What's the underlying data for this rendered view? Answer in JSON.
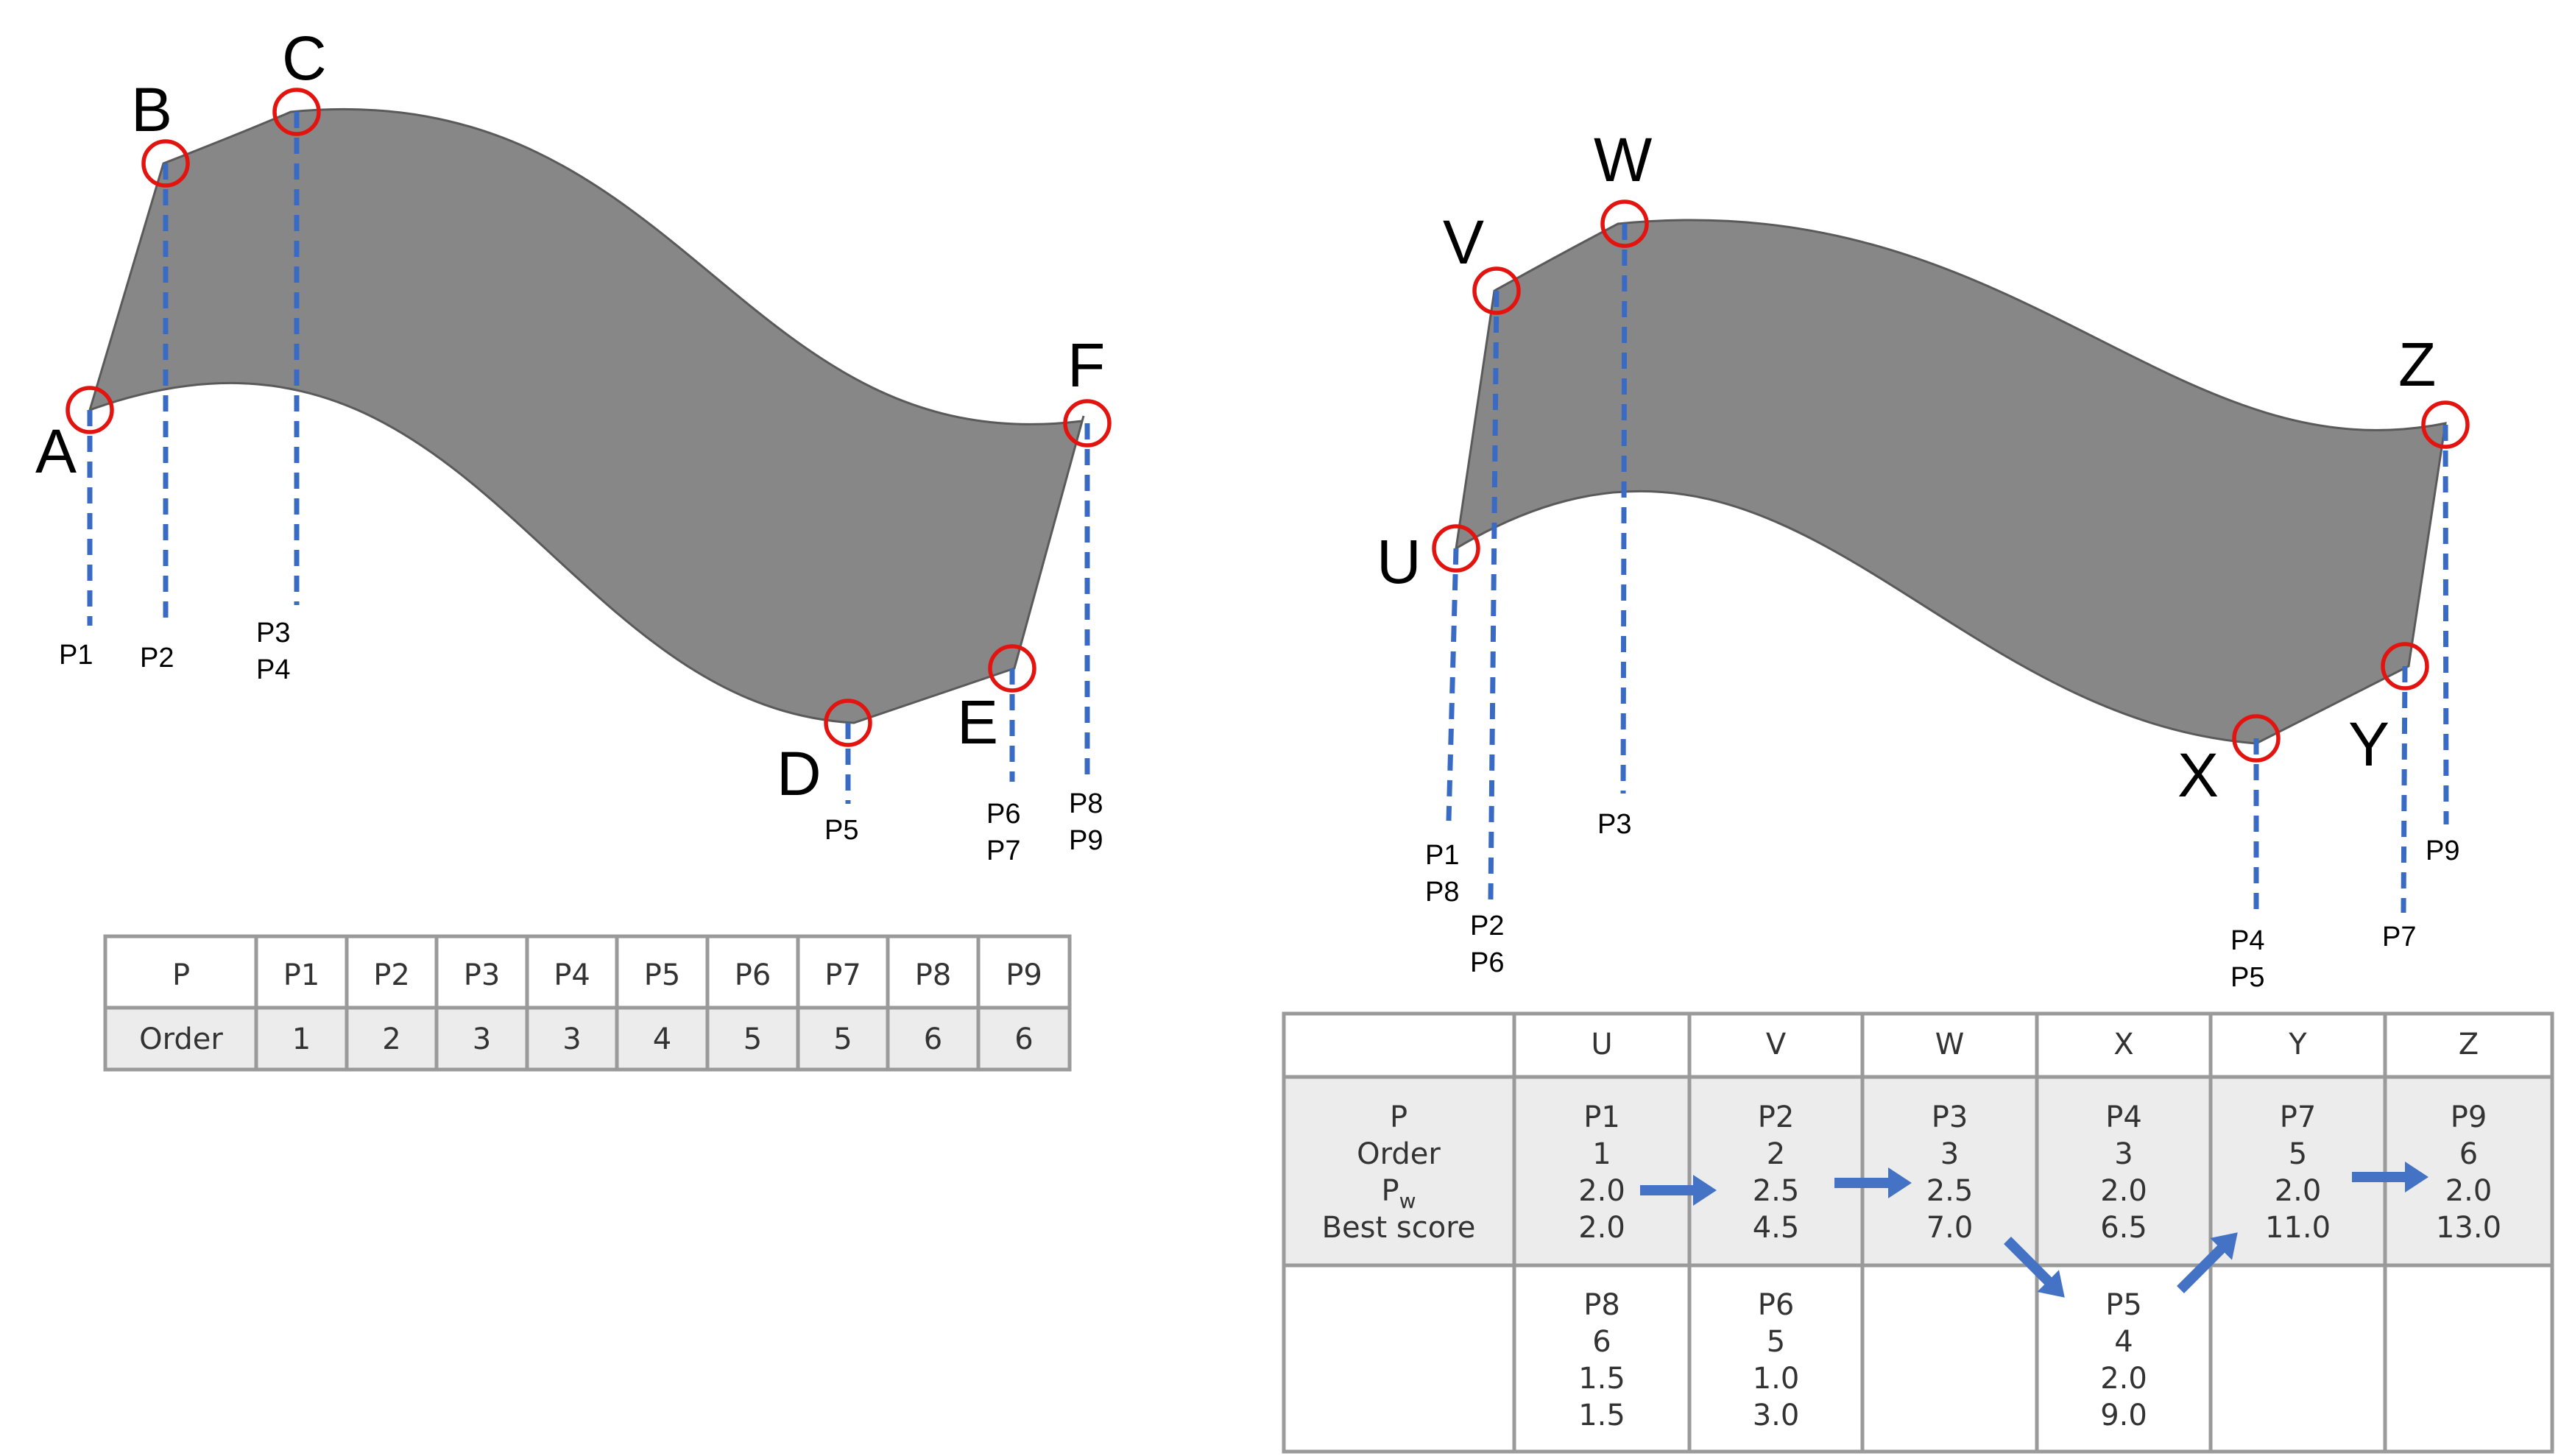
{
  "left": {
    "vertices": [
      "A",
      "B",
      "C",
      "D",
      "E",
      "F"
    ],
    "point_labels": {
      "A": [
        "P1"
      ],
      "B": [
        "P2"
      ],
      "C": [
        "P3",
        "P4"
      ],
      "D": [
        "P5"
      ],
      "E": [
        "P6",
        "P7"
      ],
      "F": [
        "P8",
        "P9"
      ]
    },
    "table": {
      "header_label": "P",
      "header": [
        "P1",
        "P2",
        "P3",
        "P4",
        "P5",
        "P6",
        "P7",
        "P8",
        "P9"
      ],
      "row_label": "Order",
      "row": [
        "1",
        "2",
        "3",
        "3",
        "4",
        "5",
        "5",
        "6",
        "6"
      ]
    }
  },
  "right": {
    "vertices": [
      "U",
      "V",
      "W",
      "X",
      "Y",
      "Z"
    ],
    "point_labels": {
      "U": [
        "P1",
        "P8"
      ],
      "V": [
        "P2",
        "P6"
      ],
      "W": [
        "P3"
      ],
      "X": [
        "P4",
        "P5"
      ],
      "Y": [
        "P7"
      ],
      "Z": [
        "P9"
      ]
    },
    "table": {
      "corner": "",
      "columns": [
        "U",
        "V",
        "W",
        "X",
        "Y",
        "Z"
      ],
      "row_labels": [
        "P",
        "Order",
        "P",
        "Best score"
      ],
      "pw_sub": "w",
      "best": [
        [
          "P1",
          "1",
          "2.0",
          "2.0"
        ],
        [
          "P2",
          "2",
          "2.5",
          "4.5"
        ],
        [
          "P3",
          "3",
          "2.5",
          "7.0"
        ],
        [
          "P4",
          "3",
          "2.0",
          "6.5"
        ],
        [
          "P7",
          "5",
          "2.0",
          "11.0"
        ],
        [
          "P9",
          "6",
          "2.0",
          "13.0"
        ]
      ],
      "alt": [
        [
          "P8",
          "6",
          "1.5",
          "1.5"
        ],
        [
          "P6",
          "5",
          "1.0",
          "3.0"
        ],
        [],
        [
          "P5",
          "4",
          "2.0",
          "9.0"
        ],
        [],
        []
      ]
    }
  }
}
